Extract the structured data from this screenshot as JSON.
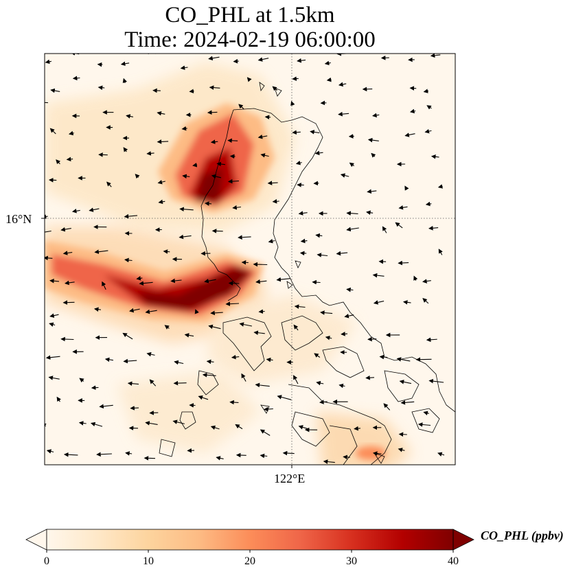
{
  "title": {
    "line1": "CO_PHL at 1.5km",
    "line2": "Time: 2024-02-19 06:00:00"
  },
  "axes": {
    "lat_tick_label": "16°N",
    "lon_tick_label": "122°E",
    "gridline_style": "dotted"
  },
  "colorbar": {
    "label": "CO_PHL (ppbv)",
    "ticks": [
      "0",
      "10",
      "20",
      "30",
      "40"
    ],
    "vmin": 0,
    "vmax": 40,
    "extend": "both",
    "colormap": "OrRd",
    "colors": [
      "#fff7ec",
      "#fee8c8",
      "#fdd49e",
      "#fdbb84",
      "#fc8d59",
      "#ef6548",
      "#d7301f",
      "#b30000",
      "#7f0000"
    ]
  },
  "map": {
    "variable": "CO_PHL",
    "level": "1.5km",
    "overlay": "wind vectors",
    "coastlines": true,
    "background_color": "#fff7ec"
  }
}
